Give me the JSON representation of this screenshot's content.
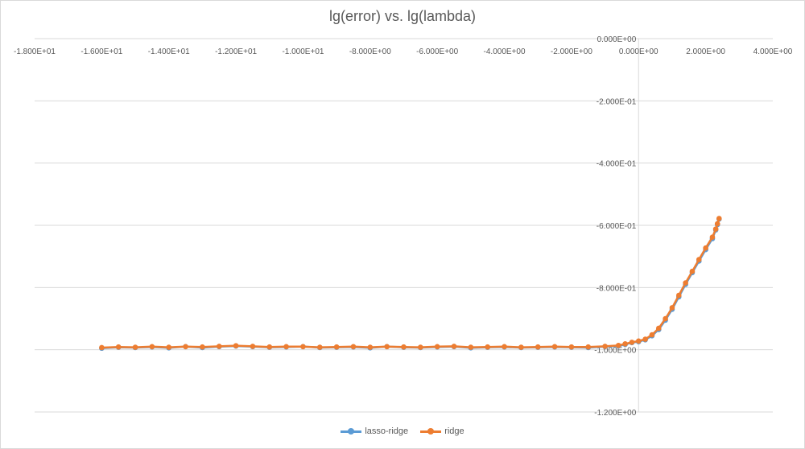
{
  "chart_data": {
    "type": "scatter",
    "title": "lg(error) vs. lg(lambda)",
    "xlim": [
      -18,
      4
    ],
    "ylim": [
      -1.2,
      0
    ],
    "x_ticks": [
      -18,
      -16,
      -14,
      -12,
      -10,
      -8,
      -6,
      -4,
      -2,
      0,
      2,
      4
    ],
    "x_tick_labels": [
      "-1.800E+01",
      "-1.600E+01",
      "-1.400E+01",
      "-1.200E+01",
      "-1.000E+01",
      "-8.000E+00",
      "-6.000E+00",
      "-4.000E+00",
      "-2.000E+00",
      "0.000E+00",
      "2.000E+00",
      "4.000E+00"
    ],
    "y_ticks": [
      0,
      -0.2,
      -0.4,
      -0.6,
      -0.8,
      -1.0,
      -1.2
    ],
    "y_tick_labels": [
      "0.000E+00",
      "-2.000E-01",
      "-4.000E-01",
      "-6.000E-01",
      "-8.000E-01",
      "-1.000E+00",
      "-1.200E+00"
    ],
    "grid": true,
    "legend_position": "bottom",
    "series": [
      {
        "name": "lasso-ridge",
        "color": "#5b9bd5",
        "points": [
          [
            -16,
            -0.995
          ],
          [
            -15.5,
            -0.992
          ],
          [
            -15,
            -0.993
          ],
          [
            -14.5,
            -0.991
          ],
          [
            -14,
            -0.994
          ],
          [
            -13.5,
            -0.99
          ],
          [
            -13,
            -0.993
          ],
          [
            -12.5,
            -0.99
          ],
          [
            -12,
            -0.988
          ],
          [
            -11.5,
            -0.99
          ],
          [
            -11,
            -0.992
          ],
          [
            -10.5,
            -0.991
          ],
          [
            -10,
            -0.99
          ],
          [
            -9.5,
            -0.993
          ],
          [
            -9,
            -0.992
          ],
          [
            -8.5,
            -0.991
          ],
          [
            -8,
            -0.994
          ],
          [
            -7.5,
            -0.99
          ],
          [
            -7,
            -0.992
          ],
          [
            -6.5,
            -0.993
          ],
          [
            -6,
            -0.991
          ],
          [
            -5.5,
            -0.99
          ],
          [
            -5,
            -0.994
          ],
          [
            -4.5,
            -0.992
          ],
          [
            -4,
            -0.991
          ],
          [
            -3.5,
            -0.993
          ],
          [
            -3,
            -0.992
          ],
          [
            -2.5,
            -0.991
          ],
          [
            -2,
            -0.992
          ],
          [
            -1.5,
            -0.993
          ],
          [
            -1,
            -0.99
          ],
          [
            -0.6,
            -0.988
          ],
          [
            -0.4,
            -0.983
          ],
          [
            -0.2,
            -0.977
          ],
          [
            0,
            -0.974
          ],
          [
            0.2,
            -0.968
          ],
          [
            0.4,
            -0.955
          ],
          [
            0.6,
            -0.935
          ],
          [
            0.8,
            -0.905
          ],
          [
            1.0,
            -0.87
          ],
          [
            1.2,
            -0.83
          ],
          [
            1.4,
            -0.79
          ],
          [
            1.6,
            -0.752
          ],
          [
            1.8,
            -0.715
          ],
          [
            2.0,
            -0.678
          ],
          [
            2.2,
            -0.643
          ],
          [
            2.3,
            -0.615
          ],
          [
            2.35,
            -0.598
          ],
          [
            2.4,
            -0.58
          ]
        ]
      },
      {
        "name": "ridge",
        "color": "#ed7d31",
        "points": [
          [
            -16,
            -0.993
          ],
          [
            -15.5,
            -0.991
          ],
          [
            -15,
            -0.992
          ],
          [
            -14.5,
            -0.99
          ],
          [
            -14,
            -0.992
          ],
          [
            -13.5,
            -0.99
          ],
          [
            -13,
            -0.991
          ],
          [
            -12.5,
            -0.989
          ],
          [
            -12,
            -0.987
          ],
          [
            -11.5,
            -0.989
          ],
          [
            -11,
            -0.991
          ],
          [
            -10.5,
            -0.99
          ],
          [
            -10,
            -0.99
          ],
          [
            -9.5,
            -0.992
          ],
          [
            -9,
            -0.991
          ],
          [
            -8.5,
            -0.99
          ],
          [
            -8,
            -0.992
          ],
          [
            -7.5,
            -0.99
          ],
          [
            -7,
            -0.991
          ],
          [
            -6.5,
            -0.992
          ],
          [
            -6,
            -0.99
          ],
          [
            -5.5,
            -0.989
          ],
          [
            -5,
            -0.992
          ],
          [
            -4.5,
            -0.991
          ],
          [
            -4,
            -0.99
          ],
          [
            -3.5,
            -0.992
          ],
          [
            -3,
            -0.991
          ],
          [
            -2.5,
            -0.99
          ],
          [
            -2,
            -0.991
          ],
          [
            -1.5,
            -0.991
          ],
          [
            -1,
            -0.989
          ],
          [
            -0.6,
            -0.986
          ],
          [
            -0.4,
            -0.981
          ],
          [
            -0.2,
            -0.976
          ],
          [
            0,
            -0.972
          ],
          [
            0.2,
            -0.966
          ],
          [
            0.4,
            -0.952
          ],
          [
            0.6,
            -0.931
          ],
          [
            0.8,
            -0.9
          ],
          [
            1.0,
            -0.865
          ],
          [
            1.2,
            -0.825
          ],
          [
            1.4,
            -0.785
          ],
          [
            1.6,
            -0.748
          ],
          [
            1.8,
            -0.71
          ],
          [
            2.0,
            -0.673
          ],
          [
            2.2,
            -0.638
          ],
          [
            2.3,
            -0.612
          ],
          [
            2.35,
            -0.595
          ],
          [
            2.4,
            -0.578
          ]
        ]
      }
    ]
  }
}
